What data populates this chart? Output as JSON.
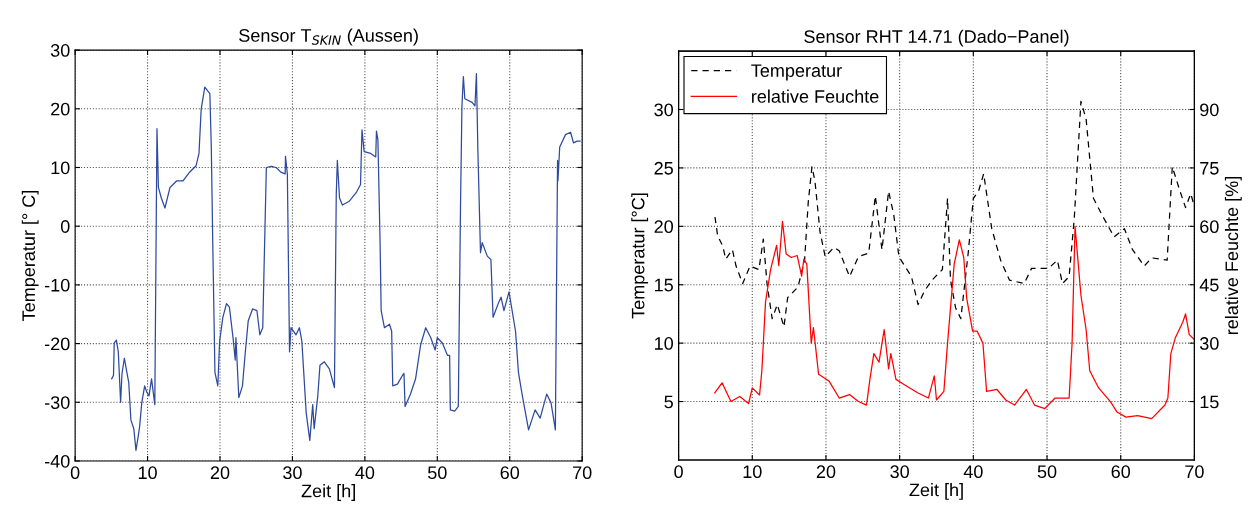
{
  "chart_data": [
    {
      "type": "line",
      "title": "Sensor T$_{SKIN}$ (Aussen)",
      "xlabel": "Zeit [h]",
      "ylabel": "Temperatur [° C]",
      "xlim": [
        0,
        70
      ],
      "xticks": [
        0,
        10,
        20,
        30,
        40,
        50,
        60,
        70
      ],
      "ylim": [
        -40,
        30
      ],
      "yticks": [
        -40,
        -30,
        -20,
        -10,
        0,
        10,
        20,
        30
      ],
      "grid": true,
      "series": [
        {
          "color": "#2e4a9e",
          "line_style": "solid",
          "x": [
            5.05,
            5.3,
            5.4,
            5.7,
            5.96,
            6.28,
            6.47,
            6.8,
            7.1,
            7.4,
            7.7,
            8.1,
            8.4,
            8.7,
            8.9,
            9.2,
            9.6,
            9.9,
            10.2,
            10.55,
            11.0,
            11.3,
            11.5,
            11.9,
            12.4,
            13.1,
            14.0,
            14.9,
            15.8,
            16.7,
            17.1,
            17.4,
            17.9,
            18.6,
            18.8,
            19.0,
            19.3,
            19.7,
            19.95,
            20.4,
            20.9,
            21.3,
            21.8,
            22.1,
            22.2,
            22.6,
            23.1,
            23.5,
            23.9,
            24.5,
            25.1,
            25.5,
            25.9,
            26.1,
            26.4,
            27.1,
            27.75,
            28.4,
            29.0,
            29.04,
            29.3,
            29.6,
            29.8,
            30.5,
            30.96,
            31.3,
            31.9,
            32.4,
            32.8,
            33.0,
            33.5,
            33.8,
            34.4,
            35.1,
            35.8,
            36.05,
            36.2,
            36.5,
            36.9,
            37.8,
            38.8,
            39.4,
            39.6,
            39.9,
            40.8,
            41.5,
            41.6,
            41.8,
            42.1,
            42.25,
            42.7,
            43.4,
            43.7,
            43.85,
            44.5,
            45.2,
            45.4,
            45.55,
            46.3,
            47.0,
            47.7,
            48.4,
            49.1,
            49.7,
            50.0,
            50.7,
            51.4,
            51.7,
            51.8,
            52.4,
            52.9,
            53.2,
            53.4,
            53.6,
            53.8,
            54.8,
            55.2,
            55.4,
            55.6,
            55.96,
            56.2,
            56.9,
            57.4,
            57.7,
            58.5,
            58.8,
            59.2,
            59.9,
            60.8,
            61.2,
            61.7,
            62.6,
            63.5,
            64.2,
            65.1,
            65.7,
            66.3,
            66.6,
            66.65,
            66.9,
            67.7,
            68.4,
            68.8,
            69.3,
            69.7
          ],
          "values": [
            -26.0,
            -25.4,
            -19.9,
            -19.4,
            -21.4,
            -30.0,
            -25.1,
            -22.5,
            -24.6,
            -26.6,
            -33.0,
            -34.5,
            -38.2,
            -35.9,
            -34.2,
            -30.1,
            -27.2,
            -28.3,
            -28.9,
            -26.0,
            -30.4,
            16.6,
            6.6,
            4.8,
            3.1,
            6.6,
            7.7,
            7.7,
            9.2,
            10.3,
            12.4,
            19.9,
            23.7,
            22.6,
            13.5,
            -2.8,
            -24.9,
            -27.2,
            -19.6,
            -15.5,
            -13.2,
            -13.8,
            -19.0,
            -22.8,
            -19.0,
            -29.2,
            -27.2,
            -21.4,
            -16.1,
            -14.1,
            -14.4,
            -18.5,
            -17.3,
            -6.2,
            10.0,
            10.2,
            10.0,
            9.2,
            8.9,
            11.9,
            8.9,
            -21.4,
            -17.3,
            -18.5,
            -17.3,
            -19.6,
            -31.8,
            -36.5,
            -30.4,
            -34.5,
            -28.9,
            -23.7,
            -23.1,
            -24.3,
            -27.5,
            5.4,
            11.2,
            4.8,
            3.6,
            4.2,
            5.7,
            7.1,
            16.4,
            12.7,
            12.4,
            11.8,
            16.2,
            14.7,
            -2.8,
            -14.4,
            -17.3,
            -16.7,
            -17.9,
            -27.2,
            -26.9,
            -25.4,
            -25.1,
            -30.7,
            -28.6,
            -26.0,
            -20.2,
            -17.3,
            -19.0,
            -21.1,
            -19.0,
            -19.9,
            -22.0,
            -22.0,
            -31.3,
            -31.5,
            -30.7,
            3.1,
            20.5,
            25.5,
            21.7,
            21.1,
            20.5,
            26.0,
            13.0,
            -4.5,
            -2.8,
            -5.1,
            -5.7,
            -15.5,
            -12.9,
            -12.1,
            -14.4,
            -11.2,
            -17.9,
            -24.9,
            -28.6,
            -34.7,
            -31.3,
            -32.7,
            -28.6,
            -30.1,
            -34.7,
            11.2,
            7.7,
            13.5,
            15.6,
            16.0,
            14.2,
            14.5,
            14.5
          ]
        }
      ]
    },
    {
      "type": "line",
      "title": "Sensor RHT 14.71 (Dado−Panel)",
      "xlabel": "Zeit [h]",
      "ylabel": "Temperatur [°C]",
      "y2label": "relative Feuchte [%]",
      "xlim": [
        0,
        70
      ],
      "xticks": [
        0,
        10,
        20,
        30,
        40,
        50,
        60,
        70
      ],
      "ylim": [
        0,
        35
      ],
      "yticks": [
        5,
        10,
        15,
        20,
        25,
        30
      ],
      "y2lim": [
        0,
        105
      ],
      "y2ticks": [
        15,
        30,
        45,
        60,
        75,
        90
      ],
      "grid": true,
      "legend": "top left",
      "series": [
        {
          "name": "Temperatur",
          "color": "#000000",
          "line_style": "dashed",
          "x": [
            4.94,
            5.3,
            6.0,
            6.4,
            7.3,
            7.8,
            8.7,
            9.7,
            10.9,
            11.5,
            12.0,
            12.7,
            13.4,
            14.3,
            14.8,
            16.2,
            17.1,
            17.6,
            18.1,
            18.5,
            19.2,
            19.9,
            21.1,
            21.8,
            23.2,
            24.4,
            25.8,
            26.7,
            27.6,
            28.5,
            29.2,
            29.9,
            31.6,
            32.5,
            33.4,
            34.4,
            35.8,
            36.5,
            36.9,
            37.6,
            38.3,
            39.3,
            40.0,
            40.7,
            41.4,
            42.5,
            43.7,
            44.9,
            46.9,
            47.9,
            50.2,
            51.4,
            52.1,
            53.0,
            53.7,
            54.6,
            55.3,
            56.3,
            57.7,
            59.1,
            60.5,
            61.6,
            63.2,
            64.2,
            66.3,
            67.0,
            67.9,
            68.8,
            69.5,
            70.0
          ],
          "values": [
            20.8,
            19.2,
            18.3,
            17.2,
            18.0,
            16.6,
            15.1,
            16.6,
            16.3,
            18.9,
            15.1,
            12.1,
            13.3,
            11.4,
            13.9,
            14.8,
            17.1,
            22.1,
            25.1,
            23.9,
            19.5,
            17.4,
            18.2,
            17.9,
            15.7,
            17.4,
            17.7,
            22.6,
            18.0,
            23.0,
            21.0,
            17.4,
            15.7,
            13.3,
            14.5,
            15.4,
            16.3,
            22.4,
            15.4,
            13.0,
            12.1,
            17.7,
            22.4,
            23.0,
            24.5,
            19.8,
            17.1,
            15.4,
            15.1,
            16.4,
            16.4,
            17.1,
            15.1,
            15.7,
            20.7,
            30.7,
            29.2,
            22.4,
            20.7,
            19.1,
            19.8,
            18.0,
            16.6,
            17.3,
            17.1,
            25.1,
            23.3,
            21.6,
            22.8,
            21.7
          ]
        },
        {
          "name": "relative Feuchte",
          "color": "#ff0000",
          "line_style": "solid",
          "axis": "y2",
          "x": [
            4.9,
            5.9,
            7.1,
            8.3,
            9.5,
            10.0,
            10.99,
            11.3,
            11.8,
            12.5,
            13.3,
            13.6,
            14.1,
            14.6,
            15.3,
            16.1,
            16.7,
            17.0,
            17.4,
            18.0,
            18.3,
            19.0,
            20.4,
            21.8,
            23.2,
            24.4,
            25.5,
            26.0,
            26.5,
            27.2,
            27.9,
            28.5,
            28.8,
            29.5,
            30.6,
            32.5,
            33.9,
            34.7,
            35.0,
            36.0,
            36.5,
            37.4,
            38.1,
            38.7,
            39.1,
            39.9,
            40.5,
            41.3,
            41.8,
            43.2,
            44.4,
            45.6,
            47.2,
            48.3,
            49.7,
            51.1,
            53.0,
            53.4,
            53.8,
            54.2,
            54.6,
            55.3,
            55.8,
            57.0,
            58.6,
            59.5,
            60.7,
            62.3,
            64.2,
            66.0,
            66.4,
            66.8,
            67.4,
            68.4,
            68.8,
            69.3,
            70.0
          ],
          "values": [
            17.2,
            19.8,
            15.0,
            16.3,
            14.5,
            18.5,
            16.7,
            22.9,
            40.6,
            49.0,
            55.1,
            49.9,
            61.3,
            52.9,
            52.0,
            52.5,
            47.2,
            51.6,
            50.3,
            30.0,
            34.0,
            22.0,
            20.3,
            15.9,
            16.8,
            15.0,
            14.1,
            21.2,
            27.3,
            25.1,
            33.5,
            23.4,
            27.3,
            20.7,
            19.4,
            17.2,
            15.9,
            21.6,
            15.4,
            17.6,
            30.0,
            50.3,
            56.5,
            52.0,
            41.5,
            33.1,
            33.1,
            30.0,
            17.6,
            18.1,
            15.4,
            14.1,
            18.1,
            14.1,
            13.2,
            15.9,
            15.9,
            30.0,
            60.0,
            51.2,
            42.3,
            33.5,
            22.9,
            18.5,
            15.0,
            12.3,
            11.0,
            11.4,
            10.6,
            14.1,
            15.9,
            27.3,
            31.3,
            35.3,
            37.5,
            32.2,
            30.9
          ]
        }
      ]
    }
  ]
}
